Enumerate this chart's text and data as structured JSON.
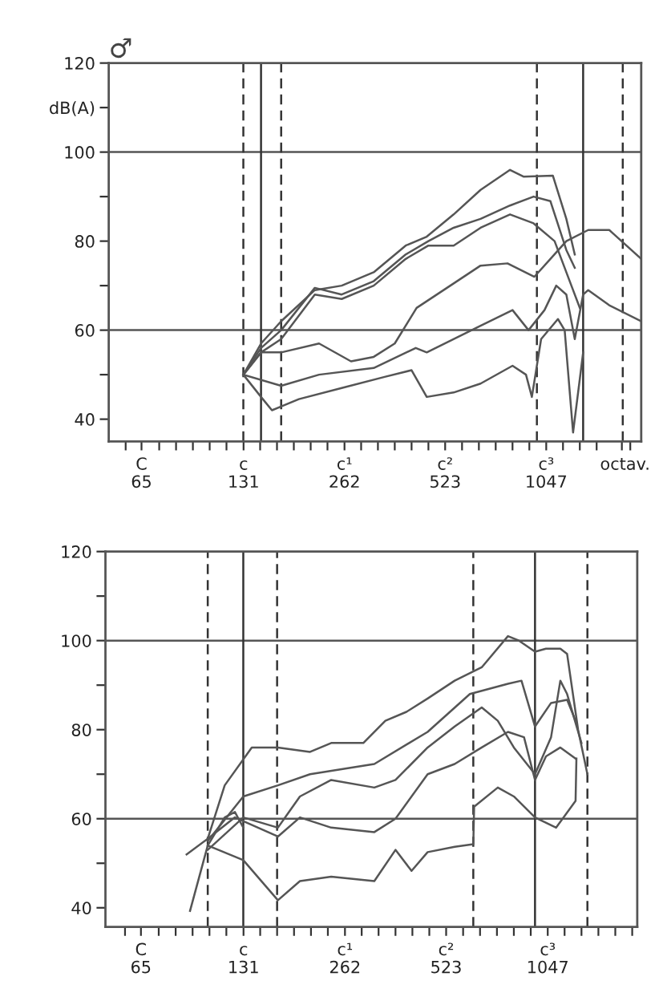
{
  "chart_data": [
    {
      "type": "line",
      "title": "♂",
      "log": "x",
      "xlim": [
        51.9,
        2010
      ],
      "ylim": [
        35,
        120
      ],
      "yticks": [
        40,
        {
          "value": 50,
          "label": null
        },
        60,
        {
          "value": 70,
          "label": null
        },
        80,
        {
          "value": 90,
          "label": null
        },
        100,
        {
          "value": 110,
          "label": "dB(A)"
        },
        120
      ],
      "xticks": [
        {
          "value": 58.3,
          "label": null
        },
        65,
        {
          "value": 73.4,
          "label": null
        },
        {
          "value": 82.4,
          "label": null
        },
        {
          "value": 92.5,
          "label": null
        },
        {
          "value": 103.8,
          "label": null
        },
        {
          "value": 116.5,
          "label": null
        },
        131,
        {
          "value": 146.8,
          "label": null
        },
        {
          "value": 164.8,
          "label": null
        },
        {
          "value": 185.0,
          "label": null
        },
        {
          "value": 207.7,
          "label": null
        },
        {
          "value": 233.1,
          "label": null
        },
        262,
        {
          "value": 293.7,
          "label": null
        },
        {
          "value": 329.6,
          "label": null
        },
        {
          "value": 370.0,
          "label": null
        },
        {
          "value": 415.3,
          "label": null
        },
        {
          "value": 466.2,
          "label": null
        },
        523,
        {
          "value": 587.3,
          "label": null
        },
        {
          "value": 659.3,
          "label": null
        },
        {
          "value": 740.0,
          "label": null
        },
        {
          "value": 830.6,
          "label": null
        },
        {
          "value": 932.3,
          "label": null
        },
        1047,
        {
          "value": 1174.7,
          "label": null
        },
        {
          "value": 1318.5,
          "label": null
        },
        {
          "value": 1480.0,
          "label": null
        },
        {
          "value": 1760,
          "label": null
        },
        {
          "value": 1864.7,
          "label": null
        }
      ],
      "annotations": [
        "C",
        "c",
        "c¹",
        "c²",
        "c³",
        "octav."
      ],
      "grid": false,
      "marker": "none",
      "line_style": "solid",
      "ref_lines": [
        {
          "axis": "y",
          "value": 60,
          "color": "#555555",
          "line_style": "solid"
        },
        {
          "axis": "y",
          "value": 100,
          "color": "#555555",
          "line_style": "solid"
        },
        {
          "axis": "x",
          "value": 130.8,
          "color": "#333333",
          "line_style": "dashed"
        },
        {
          "axis": "x",
          "value": 147.7,
          "color": "#333333",
          "line_style": "solid"
        },
        {
          "axis": "x",
          "value": 169.6,
          "color": "#333333",
          "line_style": "dashed"
        },
        {
          "axis": "x",
          "value": 982,
          "color": "#333333",
          "line_style": "dashed"
        },
        {
          "axis": "x",
          "value": 1349,
          "color": "#333333",
          "line_style": "solid"
        },
        {
          "axis": "x",
          "value": 1771,
          "color": "#333333",
          "line_style": "dashed"
        }
      ],
      "series": [
        {
          "color": "#555555",
          "x": [
            130.8,
            147.7,
            169.6,
            213.7,
            257.0,
            320.2,
            398.8,
            460.9,
            554.4,
            667.0,
            816.5,
            895.4,
            1096,
            1202,
            1273.6
          ],
          "values": [
            50,
            57,
            62,
            69,
            70,
            73,
            79,
            81,
            86,
            91.5,
            96,
            94.5,
            94.7,
            85,
            77
          ]
        },
        {
          "color": "#555555",
          "x": [
            130.8,
            147.7,
            169.6,
            213.7,
            257.0,
            320.2,
            398.8,
            466.1,
            554.4,
            667.0,
            816.5,
            959.8,
            1077.2,
            1202,
            1273.6
          ],
          "values": [
            50,
            56,
            60,
            69.5,
            68,
            71,
            77,
            80,
            83,
            85,
            88,
            90,
            89,
            78,
            74
          ]
        },
        {
          "color": "#555555",
          "x": [
            130.8,
            147.7,
            169.6,
            213.7,
            257.0,
            320.2,
            398.8,
            466.1,
            554.4,
            667.0,
            816.5,
            959.8,
            1108.8,
            1244.5,
            1318.5
          ],
          "values": [
            50,
            55,
            58,
            68,
            67,
            70,
            76,
            79,
            79,
            83,
            86,
            84,
            80,
            70,
            65
          ]
        },
        {
          "color": "#555555",
          "x": [
            130.8,
            147.7,
            169.6,
            220.0,
            274.0,
            320.2,
            370.0,
            429.9,
            554.4,
            667.0,
            802.4,
            965.3,
            1077.2,
            1202,
            1396.9,
            1613.9,
            2010
          ],
          "values": [
            50,
            55,
            55,
            57,
            53,
            54,
            57,
            65,
            70.5,
            74.5,
            75,
            72,
            76,
            80,
            82.5,
            82.5,
            76
          ]
        },
        {
          "color": "#555555",
          "x": [
            130.8,
            169.6,
            220.0,
            320.2,
            427.4,
            460.9,
            667.0,
            830.7,
            927.1,
            1034.6,
            1121.6,
            1202,
            1273.6,
            1349,
            1396.9,
            1613.9,
            2010
          ],
          "values": [
            50,
            47.5,
            50,
            51.5,
            56,
            55,
            61,
            64.5,
            60,
            64.5,
            70,
            68,
            58,
            68,
            69,
            65.6,
            62
          ]
        },
        {
          "color": "#555555",
          "x": [
            130.8,
            147.7,
            159.2,
            191.5,
            257.0,
            345.2,
            415.3,
            460.9,
            554.4,
            667.0,
            830.7,
            911.1,
            948.7,
            1010.9,
            1134.6,
            1188.3,
            1258.9,
            1349
          ],
          "values": [
            50,
            45,
            42,
            44.5,
            47,
            49.5,
            51,
            45,
            46,
            48,
            52,
            50,
            45,
            58,
            62.5,
            60,
            37,
            55
          ]
        }
      ]
    },
    {
      "type": "line",
      "log": "x",
      "xlim": [
        51.0,
        1930
      ],
      "ylim": [
        35.7,
        120
      ],
      "yticks": [
        40,
        {
          "value": 50,
          "label": null
        },
        60,
        {
          "value": 70,
          "label": null
        },
        80,
        {
          "value": 90,
          "label": null
        },
        100,
        {
          "value": 110,
          "label": null
        },
        120
      ],
      "xticks": [
        {
          "value": 58.3,
          "label": null
        },
        65,
        {
          "value": 73.4,
          "label": null
        },
        {
          "value": 82.4,
          "label": null
        },
        {
          "value": 92.5,
          "label": null
        },
        {
          "value": 103.8,
          "label": null
        },
        {
          "value": 116.5,
          "label": null
        },
        131,
        {
          "value": 146.8,
          "label": null
        },
        {
          "value": 164.8,
          "label": null
        },
        {
          "value": 185.0,
          "label": null
        },
        {
          "value": 207.7,
          "label": null
        },
        {
          "value": 233.1,
          "label": null
        },
        262,
        {
          "value": 293.7,
          "label": null
        },
        {
          "value": 329.6,
          "label": null
        },
        {
          "value": 370.0,
          "label": null
        },
        {
          "value": 415.3,
          "label": null
        },
        {
          "value": 466.2,
          "label": null
        },
        523,
        {
          "value": 587.3,
          "label": null
        },
        {
          "value": 659.3,
          "label": null
        },
        {
          "value": 740.0,
          "label": null
        },
        {
          "value": 830.6,
          "label": null
        },
        {
          "value": 932.3,
          "label": null
        },
        1047,
        {
          "value": 1174.7,
          "label": null
        },
        {
          "value": 1318.5,
          "label": null
        },
        {
          "value": 1480.0,
          "label": null
        },
        {
          "value": 1661.2,
          "label": null
        },
        {
          "value": 1864.7,
          "label": null
        }
      ],
      "annotations": [
        "C",
        "c",
        "c¹",
        "c²",
        "c³"
      ],
      "grid": false,
      "marker": "none",
      "line_style": "solid",
      "ref_lines": [
        {
          "axis": "y",
          "value": 60,
          "color": "#555555",
          "line_style": "solid"
        },
        {
          "axis": "y",
          "value": 100,
          "color": "#555555",
          "line_style": "solid"
        },
        {
          "axis": "x",
          "value": 102.6,
          "color": "#333333",
          "line_style": "dashed"
        },
        {
          "axis": "x",
          "value": 130.8,
          "color": "#333333",
          "line_style": "solid"
        },
        {
          "axis": "x",
          "value": 164.8,
          "color": "#333333",
          "line_style": "dashed"
        },
        {
          "axis": "x",
          "value": 629.6,
          "color": "#333333",
          "line_style": "dashed"
        },
        {
          "axis": "x",
          "value": 959.8,
          "color": "#333333",
          "line_style": "solid"
        },
        {
          "axis": "x",
          "value": 1373,
          "color": "#333333",
          "line_style": "dashed"
        }
      ],
      "series": [
        {
          "color": "#555555",
          "x": [
            88.8,
            102.6,
            115.2,
            138.6,
            165.7,
            206.4,
            238.5,
            297.0,
            345.2,
            398.8,
            460.9,
            554.4,
            667.0,
            797.8,
            860.0,
            959.8,
            1034.6,
            1141.2,
            1195.2,
            1288.3,
            1373
          ],
          "values": [
            52,
            55.5,
            67.5,
            76,
            76,
            75,
            77,
            77,
            82,
            84,
            87,
            91,
            94,
            101,
            100,
            97.5,
            98.2,
            98.2,
            97,
            80,
            70
          ]
        },
        {
          "color": "#555555",
          "x": [
            102.6,
            130.8,
            165.7,
            206.4,
            320.2,
            460.9,
            615.1,
            797.8,
            875.0,
            959.8,
            1071.0,
            1195.2,
            1266.3
          ],
          "values": [
            55,
            65,
            67.5,
            70,
            72.3,
            79.5,
            88,
            90.3,
            91,
            80.7,
            86,
            86.7,
            82
          ]
        },
        {
          "color": "#555555",
          "x": [
            102.6,
            130.8,
            165.7,
            192.6,
            238.5,
            320.2,
            370.0,
            460.9,
            554.4,
            667.0,
            744.3,
            830.7,
            959.8,
            1071.0,
            1141.2,
            1195.2,
            1318.5
          ],
          "values": [
            53,
            60.3,
            58,
            65,
            68.7,
            67,
            68.7,
            76,
            80.7,
            85,
            82,
            76,
            70,
            78.3,
            91,
            88,
            77
          ]
        },
        {
          "color": "#555555",
          "x": [
            102.6,
            123.5,
            165.7,
            192.6,
            238.5,
            320.2,
            370.0,
            460.9,
            554.4,
            667.0,
            797.8,
            890.3,
            959.8,
            1034.6,
            1141.2,
            1266.3
          ],
          "values": [
            55.5,
            60.3,
            56,
            60.3,
            58,
            57,
            60,
            70,
            72.3,
            76,
            79.5,
            78.3,
            68.7,
            74,
            76,
            73.5
          ]
        },
        {
          "color": "#555555",
          "x": [
            102.6,
            130.8,
            165.7,
            192.6,
            238.5,
            320.2,
            370.0,
            412.9,
            460.9,
            554.4,
            629.6,
            633.2,
            744.3,
            830.7,
            959.8,
            1108.8,
            1266.3,
            1273.6
          ],
          "values": [
            54,
            50.7,
            41.7,
            46,
            47,
            46,
            53,
            48.3,
            52.5,
            53.7,
            54.3,
            62.7,
            67,
            65,
            60.3,
            58,
            64,
            73.5
          ]
        },
        {
          "color": "#555555",
          "x": [
            90.9,
            102.6,
            115.2,
            123.5,
            130.8
          ],
          "values": [
            39.3,
            54,
            60.3,
            61.5,
            58
          ]
        }
      ]
    }
  ]
}
